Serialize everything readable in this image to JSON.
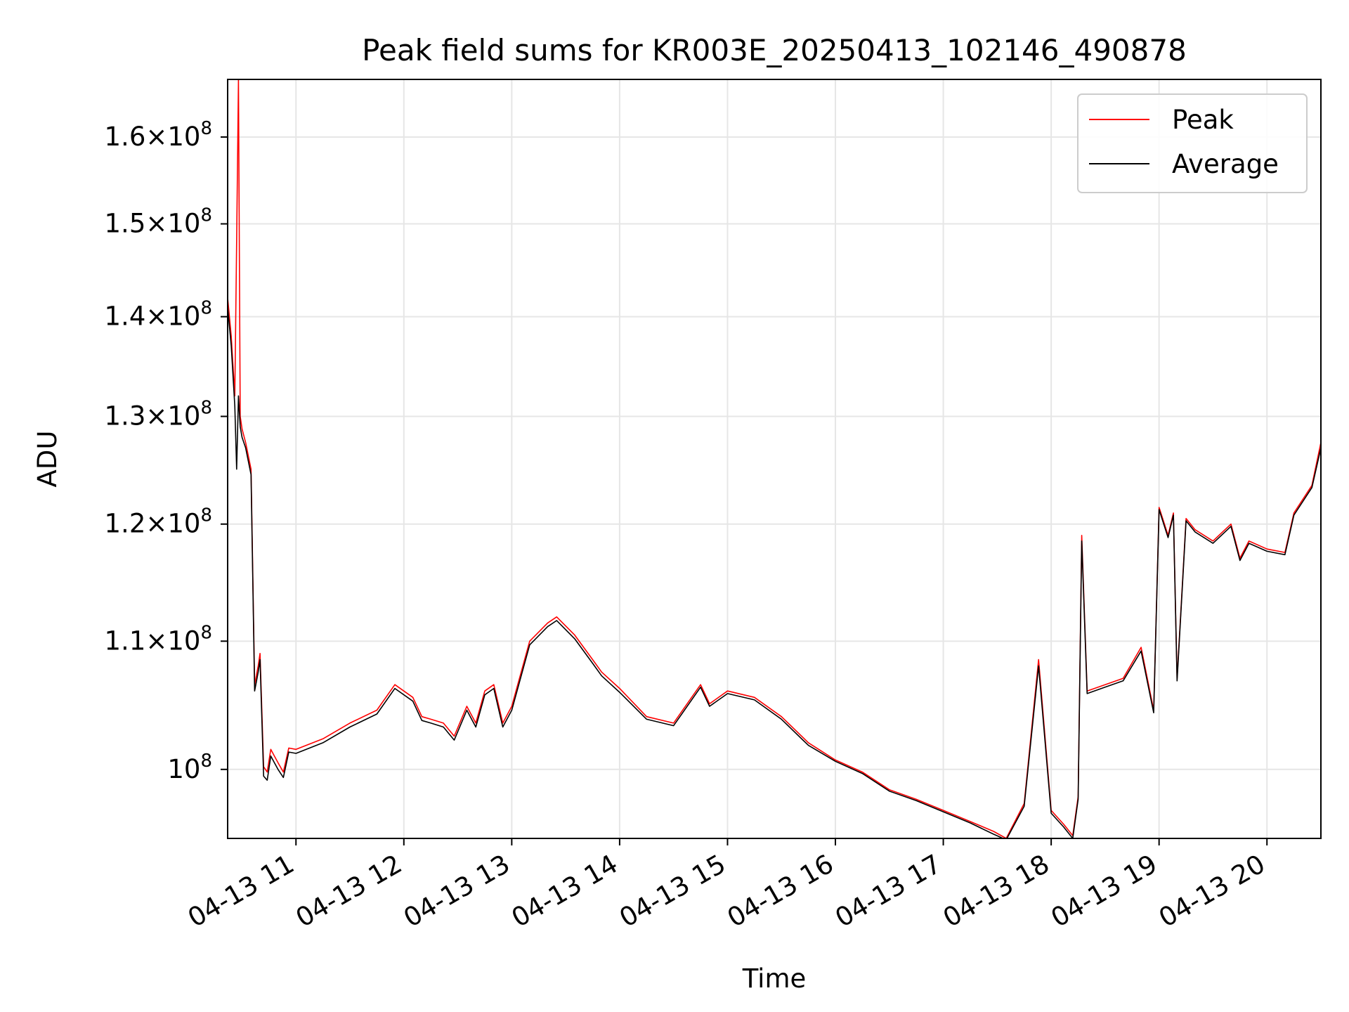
{
  "chart_data": {
    "type": "line",
    "title": "Peak field sums for KR003E_20250413_102146_490878",
    "xlabel": "Time",
    "ylabel": "ADU",
    "yscale": "log",
    "grid": true,
    "legend_position": "top-right",
    "xlim": [
      "2025-04-13 10:22",
      "2025-04-13 20:30"
    ],
    "ylim": [
      95000000,
      167000000
    ],
    "x_ticks": [
      {
        "label": "04-13 11",
        "value": "2025-04-13 11:00"
      },
      {
        "label": "04-13 12",
        "value": "2025-04-13 12:00"
      },
      {
        "label": "04-13 13",
        "value": "2025-04-13 13:00"
      },
      {
        "label": "04-13 14",
        "value": "2025-04-13 14:00"
      },
      {
        "label": "04-13 15",
        "value": "2025-04-13 15:00"
      },
      {
        "label": "04-13 16",
        "value": "2025-04-13 16:00"
      },
      {
        "label": "04-13 17",
        "value": "2025-04-13 17:00"
      },
      {
        "label": "04-13 18",
        "value": "2025-04-13 18:00"
      },
      {
        "label": "04-13 19",
        "value": "2025-04-13 19:00"
      },
      {
        "label": "04-13 20",
        "value": "2025-04-13 20:00"
      }
    ],
    "y_ticks": [
      {
        "mantissa": "1.6",
        "exponent": "8",
        "value": 160000000
      },
      {
        "mantissa": "1.5",
        "exponent": "8",
        "value": 150000000
      },
      {
        "mantissa": "1.4",
        "exponent": "8",
        "value": 140000000
      },
      {
        "mantissa": "1.3",
        "exponent": "8",
        "value": 130000000
      },
      {
        "mantissa": "1.2",
        "exponent": "8",
        "value": 120000000
      },
      {
        "mantissa": "1.1",
        "exponent": "8",
        "value": 110000000
      },
      {
        "mantissa": "",
        "exponent": "8",
        "value": 100000000
      }
    ],
    "tick_base": "10",
    "tick_times": "×",
    "series": [
      {
        "name": "Peak",
        "color": "#ff0000",
        "x": [
          "2025-04-13 10:22",
          "2025-04-13 10:24",
          "2025-04-13 10:26",
          "2025-04-13 10:27",
          "2025-04-13 10:28",
          "2025-04-13 10:29",
          "2025-04-13 10:30",
          "2025-04-13 10:32",
          "2025-04-13 10:35",
          "2025-04-13 10:37",
          "2025-04-13 10:39",
          "2025-04-13 10:40",
          "2025-04-13 10:42",
          "2025-04-13 10:44",
          "2025-04-13 10:46",
          "2025-04-13 10:48",
          "2025-04-13 10:50",
          "2025-04-13 10:53",
          "2025-04-13 10:56",
          "2025-04-13 11:00",
          "2025-04-13 11:15",
          "2025-04-13 11:30",
          "2025-04-13 11:45",
          "2025-04-13 11:55",
          "2025-04-13 12:05",
          "2025-04-13 12:10",
          "2025-04-13 12:15",
          "2025-04-13 12:22",
          "2025-04-13 12:28",
          "2025-04-13 12:35",
          "2025-04-13 12:40",
          "2025-04-13 12:45",
          "2025-04-13 12:50",
          "2025-04-13 12:55",
          "2025-04-13 13:00",
          "2025-04-13 13:10",
          "2025-04-13 13:20",
          "2025-04-13 13:25",
          "2025-04-13 13:35",
          "2025-04-13 13:45",
          "2025-04-13 13:50",
          "2025-04-13 14:00",
          "2025-04-13 14:15",
          "2025-04-13 14:30",
          "2025-04-13 14:45",
          "2025-04-13 14:50",
          "2025-04-13 15:00",
          "2025-04-13 15:15",
          "2025-04-13 15:30",
          "2025-04-13 15:45",
          "2025-04-13 16:00",
          "2025-04-13 16:15",
          "2025-04-13 16:30",
          "2025-04-13 16:45",
          "2025-04-13 17:00",
          "2025-04-13 17:15",
          "2025-04-13 17:28",
          "2025-04-13 17:35",
          "2025-04-13 17:45",
          "2025-04-13 17:53",
          "2025-04-13 18:00",
          "2025-04-13 18:07",
          "2025-04-13 18:12",
          "2025-04-13 18:15",
          "2025-04-13 18:17",
          "2025-04-13 18:20",
          "2025-04-13 18:30",
          "2025-04-13 18:40",
          "2025-04-13 18:50",
          "2025-04-13 18:57",
          "2025-04-13 19:00",
          "2025-04-13 19:05",
          "2025-04-13 19:08",
          "2025-04-13 19:10",
          "2025-04-13 19:15",
          "2025-04-13 19:20",
          "2025-04-13 19:30",
          "2025-04-13 19:40",
          "2025-04-13 19:45",
          "2025-04-13 19:50",
          "2025-04-13 20:00",
          "2025-04-13 20:10",
          "2025-04-13 20:15",
          "2025-04-13 20:25",
          "2025-04-13 20:30"
        ],
        "y": [
          142000000,
          138000000,
          132000000,
          148000000,
          167000000,
          130000000,
          128800000,
          127500000,
          125000000,
          106500000,
          108000000,
          109000000,
          100200000,
          99800000,
          101500000,
          101000000,
          100500000,
          99800000,
          101600000,
          101500000,
          102300000,
          103500000,
          104500000,
          106500000,
          105500000,
          104000000,
          103800000,
          103500000,
          102500000,
          104800000,
          103500000,
          106000000,
          106500000,
          103500000,
          104800000,
          110000000,
          111500000,
          112000000,
          110500000,
          108500000,
          107500000,
          106200000,
          104000000,
          103500000,
          106500000,
          105000000,
          106000000,
          105500000,
          104000000,
          102000000,
          100700000,
          99800000,
          98500000,
          97800000,
          97000000,
          96200000,
          95500000,
          95000000,
          97500000,
          108500000,
          97000000,
          96000000,
          95200000,
          98000000,
          119000000,
          106000000,
          106500000,
          107000000,
          109500000,
          104500000,
          121500000,
          119000000,
          121000000,
          107000000,
          120500000,
          119500000,
          118500000,
          120000000,
          117000000,
          118500000,
          117800000,
          117500000,
          121000000,
          123500000,
          127500000
        ]
      },
      {
        "name": "Average",
        "color": "#000000",
        "x": [
          "2025-04-13 10:22",
          "2025-04-13 10:24",
          "2025-04-13 10:26",
          "2025-04-13 10:27",
          "2025-04-13 10:28",
          "2025-04-13 10:29",
          "2025-04-13 10:30",
          "2025-04-13 10:32",
          "2025-04-13 10:35",
          "2025-04-13 10:37",
          "2025-04-13 10:39",
          "2025-04-13 10:40",
          "2025-04-13 10:42",
          "2025-04-13 10:44",
          "2025-04-13 10:46",
          "2025-04-13 10:48",
          "2025-04-13 10:50",
          "2025-04-13 10:53",
          "2025-04-13 10:56",
          "2025-04-13 11:00",
          "2025-04-13 11:15",
          "2025-04-13 11:30",
          "2025-04-13 11:45",
          "2025-04-13 11:55",
          "2025-04-13 12:05",
          "2025-04-13 12:10",
          "2025-04-13 12:15",
          "2025-04-13 12:22",
          "2025-04-13 12:28",
          "2025-04-13 12:35",
          "2025-04-13 12:40",
          "2025-04-13 12:45",
          "2025-04-13 12:50",
          "2025-04-13 12:55",
          "2025-04-13 13:00",
          "2025-04-13 13:10",
          "2025-04-13 13:20",
          "2025-04-13 13:25",
          "2025-04-13 13:35",
          "2025-04-13 13:45",
          "2025-04-13 13:50",
          "2025-04-13 14:00",
          "2025-04-13 14:15",
          "2025-04-13 14:30",
          "2025-04-13 14:45",
          "2025-04-13 14:50",
          "2025-04-13 15:00",
          "2025-04-13 15:15",
          "2025-04-13 15:30",
          "2025-04-13 15:45",
          "2025-04-13 16:00",
          "2025-04-13 16:15",
          "2025-04-13 16:30",
          "2025-04-13 16:45",
          "2025-04-13 17:00",
          "2025-04-13 17:15",
          "2025-04-13 17:28",
          "2025-04-13 17:35",
          "2025-04-13 17:45",
          "2025-04-13 17:53",
          "2025-04-13 18:00",
          "2025-04-13 18:07",
          "2025-04-13 18:12",
          "2025-04-13 18:15",
          "2025-04-13 18:17",
          "2025-04-13 18:20",
          "2025-04-13 18:30",
          "2025-04-13 18:40",
          "2025-04-13 18:50",
          "2025-04-13 18:57",
          "2025-04-13 19:00",
          "2025-04-13 19:05",
          "2025-04-13 19:08",
          "2025-04-13 19:10",
          "2025-04-13 19:15",
          "2025-04-13 19:20",
          "2025-04-13 19:30",
          "2025-04-13 19:40",
          "2025-04-13 19:45",
          "2025-04-13 19:50",
          "2025-04-13 20:00",
          "2025-04-13 20:10",
          "2025-04-13 20:15",
          "2025-04-13 20:25",
          "2025-04-13 20:30"
        ],
        "y": [
          141000000,
          137000000,
          131000000,
          125000000,
          132000000,
          129000000,
          128000000,
          127000000,
          124500000,
          106000000,
          107500000,
          108500000,
          99500000,
          99200000,
          101000000,
          100500000,
          100000000,
          99400000,
          101300000,
          101200000,
          102000000,
          103200000,
          104200000,
          106200000,
          105200000,
          103700000,
          103500000,
          103200000,
          102200000,
          104500000,
          103200000,
          105700000,
          106200000,
          103200000,
          104500000,
          109700000,
          111200000,
          111700000,
          110200000,
          108200000,
          107200000,
          105900000,
          103800000,
          103300000,
          106300000,
          104800000,
          105800000,
          105300000,
          103800000,
          101800000,
          100600000,
          99700000,
          98400000,
          97700000,
          96900000,
          96100000,
          95300000,
          94900000,
          97300000,
          108000000,
          96800000,
          95800000,
          95000000,
          97800000,
          118500000,
          105800000,
          106300000,
          106800000,
          109200000,
          104300000,
          121300000,
          118800000,
          120800000,
          106800000,
          120300000,
          119300000,
          118300000,
          119800000,
          116800000,
          118300000,
          117600000,
          117300000,
          120800000,
          123300000,
          127000000
        ]
      }
    ]
  }
}
